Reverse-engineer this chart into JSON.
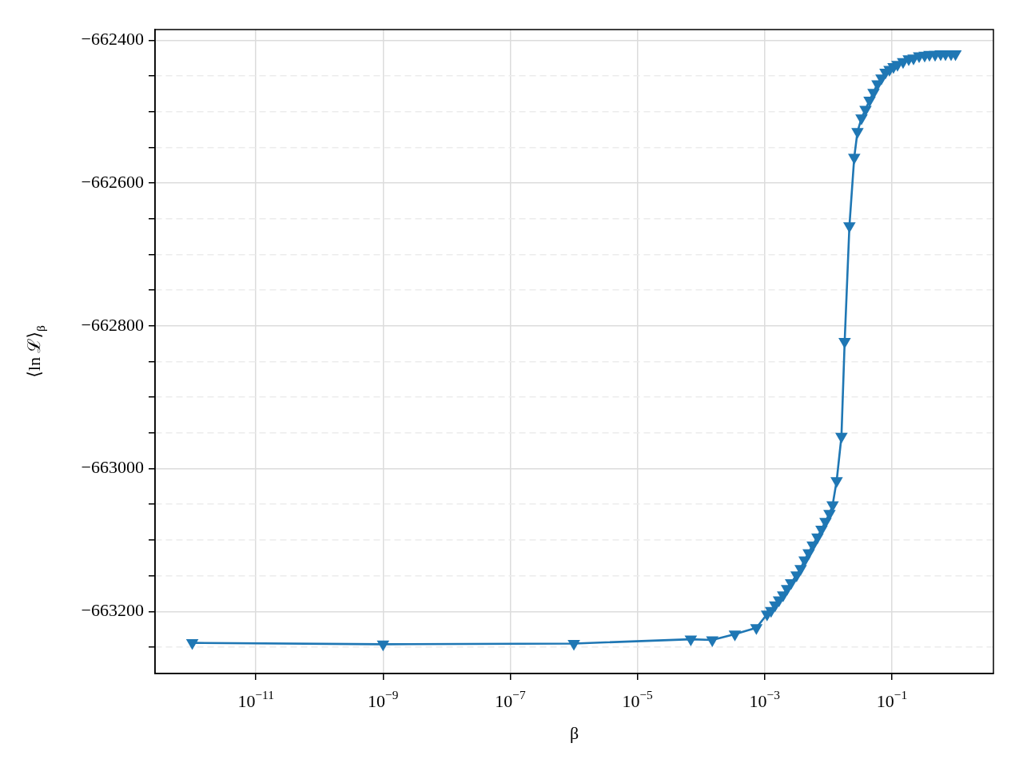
{
  "chart_data": {
    "type": "line",
    "xlabel": "β",
    "ylabel": "⟨ln ℒ⟩$_{β}$",
    "log": "x",
    "grid": true,
    "marker": "triangle",
    "line_style": "solid",
    "xlim": [
      2.6e-13,
      3.95
    ],
    "ylim": [
      -663287,
      -662385
    ],
    "xticks": [
      {
        "value": 1e-11,
        "label": "10$^{−11}$"
      },
      {
        "value": 1e-09,
        "label": "10$^{−9}$"
      },
      {
        "value": 1e-07,
        "label": "10$^{−7}$"
      },
      {
        "value": 1e-05,
        "label": "10$^{−5}$"
      },
      {
        "value": 0.001,
        "label": "10$^{−3}$"
      },
      {
        "value": 0.1,
        "label": "10$^{−1}$"
      }
    ],
    "yticks": [
      {
        "value": -663250,
        "label": null
      },
      {
        "value": -663200,
        "label": "−663200"
      },
      {
        "value": -663150,
        "label": null
      },
      {
        "value": -663100,
        "label": null
      },
      {
        "value": -663050,
        "label": null
      },
      {
        "value": -663000,
        "label": "−663000"
      },
      {
        "value": -662950,
        "label": null
      },
      {
        "value": -662900,
        "label": null
      },
      {
        "value": -662850,
        "label": null
      },
      {
        "value": -662800,
        "label": "−662800"
      },
      {
        "value": -662750,
        "label": null
      },
      {
        "value": -662700,
        "label": null
      },
      {
        "value": -662650,
        "label": null
      },
      {
        "value": -662600,
        "label": "−662600"
      },
      {
        "value": -662550,
        "label": null
      },
      {
        "value": -662500,
        "label": null
      },
      {
        "value": -662450,
        "label": null
      },
      {
        "value": -662400,
        "label": "−662400"
      }
    ],
    "series": [
      {
        "color": "#1f77b4",
        "x": [
          1e-12,
          1e-09,
          1e-06,
          6.9e-05,
          0.00015,
          0.00034,
          0.00074,
          0.00109,
          0.00126,
          0.00146,
          0.00168,
          0.00195,
          0.00225,
          0.0026,
          0.00318,
          0.00368,
          0.00425,
          0.00492,
          0.00569,
          0.00676,
          0.00782,
          0.00904,
          0.01045,
          0.0117,
          0.01355,
          0.0161,
          0.0181,
          0.0215,
          0.0256,
          0.0288,
          0.0333,
          0.0385,
          0.0445,
          0.0514,
          0.0594,
          0.0686,
          0.0793,
          0.0917,
          0.106,
          0.1225,
          0.15,
          0.184,
          0.219,
          0.268,
          0.328,
          0.39,
          0.478,
          0.585,
          0.696,
          0.853,
          1
        ],
        "values": [
          -663244,
          -663246,
          -663245,
          -663239,
          -663240,
          -663232,
          -663223,
          -663204,
          -663199,
          -663191,
          -663184,
          -663177,
          -663168,
          -663160,
          -663149,
          -663140,
          -663128,
          -663118,
          -663107,
          -663096,
          -663085,
          -663074,
          -663063,
          -663051,
          -663017,
          -662955,
          -662822,
          -662660,
          -662564,
          -662528,
          -662509,
          -662497,
          -662484,
          -662473,
          -662461,
          -662453,
          -662445,
          -662441,
          -662437,
          -662434,
          -662430,
          -662426,
          -662425,
          -662422,
          -662421,
          -662420,
          -662420,
          -662419,
          -662419,
          -662419,
          -662419
        ]
      }
    ]
  }
}
